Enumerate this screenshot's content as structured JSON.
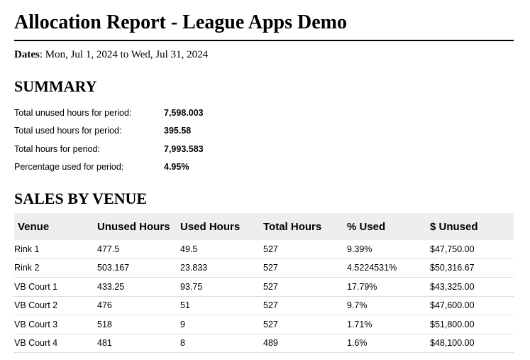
{
  "report": {
    "title": "Allocation Report - League Apps Demo",
    "dates_label": "Dates",
    "dates_value": ": Mon, Jul 1, 2024 to Wed, Jul 31, 2024"
  },
  "summary": {
    "heading": "SUMMARY",
    "rows": [
      {
        "label": "Total unused hours for period:",
        "value": "7,598.003"
      },
      {
        "label": "Total used hours for period:",
        "value": "395.58"
      },
      {
        "label": "Total hours for period:",
        "value": "7,993.583"
      },
      {
        "label": "Percentage used for period:",
        "value": "4.95%"
      }
    ]
  },
  "sales_by_venue": {
    "heading": "SALES BY VENUE",
    "columns": [
      "Venue",
      "Unused Hours",
      "Used Hours",
      "Total Hours",
      "% Used",
      "$ Unused"
    ],
    "rows": [
      [
        "Rink 1",
        "477.5",
        "49.5",
        "527",
        "9.39%",
        "$47,750.00"
      ],
      [
        "Rink 2",
        "503.167",
        "23.833",
        "527",
        "4.5224531%",
        "$50,316.67"
      ],
      [
        "VB Court 1",
        "433.25",
        "93.75",
        "527",
        "17.79%",
        "$43,325.00"
      ],
      [
        "VB Court 2",
        "476",
        "51",
        "527",
        "9.7%",
        "$47,600.00"
      ],
      [
        "VB Court 3",
        "518",
        "9",
        "527",
        "1.71%",
        "$51,800.00"
      ],
      [
        "VB Court 4",
        "481",
        "8",
        "489",
        "1.6%",
        "$48,100.00"
      ]
    ]
  }
}
